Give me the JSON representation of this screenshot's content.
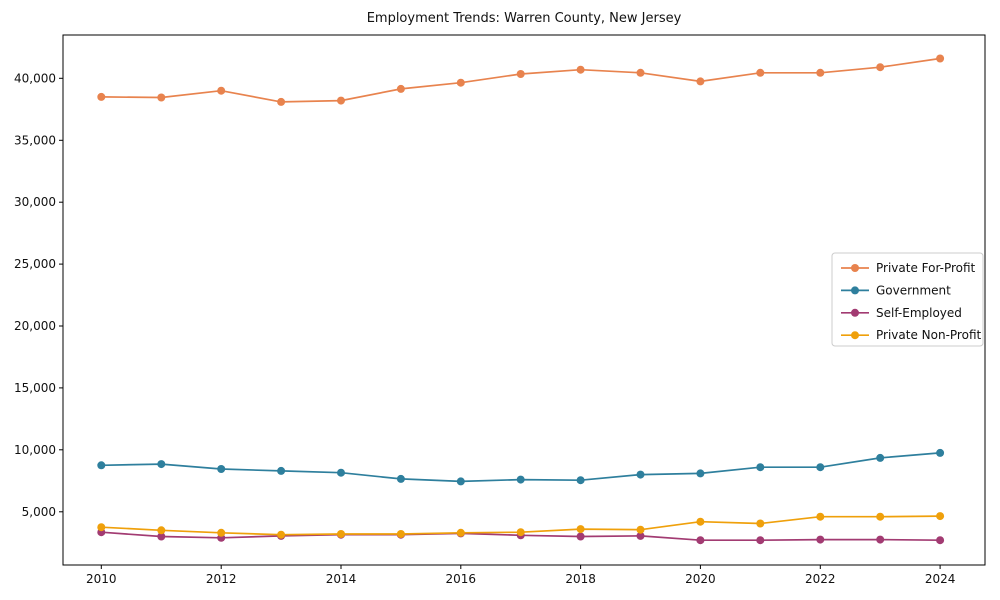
{
  "chart_data": {
    "type": "line",
    "title": "Employment Trends: Warren County, New Jersey",
    "xlabel": "",
    "ylabel": "",
    "x": [
      2010,
      2011,
      2012,
      2013,
      2014,
      2015,
      2016,
      2017,
      2018,
      2019,
      2020,
      2021,
      2022,
      2023,
      2024
    ],
    "x_ticks": [
      2010,
      2012,
      2014,
      2016,
      2018,
      2020,
      2022,
      2024
    ],
    "x_tick_labels": [
      "2010",
      "2012",
      "2014",
      "2016",
      "2018",
      "2020",
      "2022",
      "2024"
    ],
    "y_ticks": [
      5000,
      10000,
      15000,
      20000,
      25000,
      30000,
      35000,
      40000
    ],
    "y_tick_labels": [
      "5,000",
      "10,000",
      "15,000",
      "20,000",
      "25,000",
      "30,000",
      "35,000",
      "40,000"
    ],
    "xlim": [
      2009.36,
      2024.75
    ],
    "ylim": [
      700,
      43500
    ],
    "grid": false,
    "legend_position": "center right",
    "series": [
      {
        "name": "Private For-Profit",
        "color": "#e8834e",
        "values": [
          38500,
          38450,
          39000,
          38100,
          38200,
          39150,
          39650,
          40350,
          40700,
          40450,
          39750,
          40450,
          40450,
          40900,
          41600
        ]
      },
      {
        "name": "Government",
        "color": "#2e7f9d",
        "values": [
          8750,
          8850,
          8450,
          8300,
          8150,
          7650,
          7450,
          7600,
          7550,
          8000,
          8100,
          8600,
          8600,
          9350,
          9750
        ]
      },
      {
        "name": "Self-Employed",
        "color": "#a23b72",
        "values": [
          3350,
          3000,
          2900,
          3050,
          3150,
          3150,
          3250,
          3100,
          3000,
          3050,
          2700,
          2700,
          2750,
          2750,
          2700
        ]
      },
      {
        "name": "Private Non-Profit",
        "color": "#efa00b",
        "values": [
          3750,
          3500,
          3300,
          3150,
          3200,
          3200,
          3300,
          3350,
          3600,
          3550,
          4200,
          4050,
          4600,
          4600,
          4650
        ]
      }
    ]
  }
}
